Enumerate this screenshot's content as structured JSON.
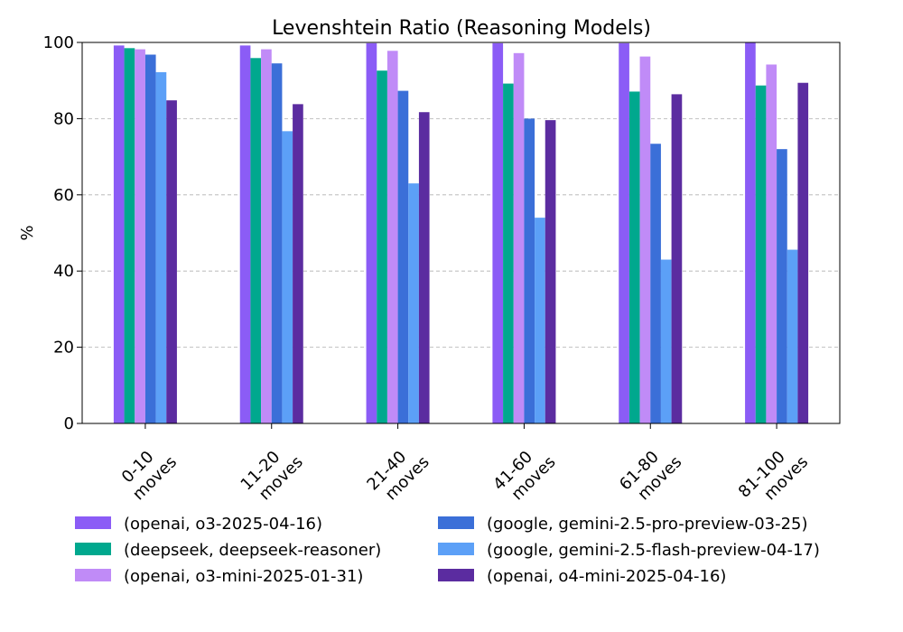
{
  "chart_data": {
    "type": "bar",
    "title": "Levenshtein Ratio (Reasoning Models)",
    "xlabel": "",
    "ylabel": "%",
    "ylim": [
      0,
      100
    ],
    "yticks": [
      "0",
      "20",
      "40",
      "60",
      "80",
      "100"
    ],
    "grid": true,
    "legend_position": "bottom",
    "categories": [
      "0-10\nmoves",
      "11-20\nmoves",
      "21-40\nmoves",
      "41-60\nmoves",
      "61-80\nmoves",
      "81-100\nmoves"
    ],
    "series": [
      {
        "name": "(openai, o3-2025-04-16)",
        "color": "#8b5cf6",
        "values": [
          99.2,
          99.2,
          99.8,
          99.8,
          99.8,
          100.0
        ]
      },
      {
        "name": "(deepseek, deepseek-reasoner)",
        "color": "#00a88e",
        "values": [
          98.5,
          95.9,
          92.6,
          89.2,
          87.1,
          88.7
        ]
      },
      {
        "name": "(openai, o3-mini-2025-01-31)",
        "color": "#c08bf7",
        "values": [
          98.2,
          98.2,
          97.8,
          97.2,
          96.3,
          94.2
        ]
      },
      {
        "name": "(google, gemini-2.5-pro-preview-03-25)",
        "color": "#3b6fd8",
        "values": [
          96.8,
          94.5,
          87.3,
          80.0,
          73.4,
          72.0
        ]
      },
      {
        "name": "(google, gemini-2.5-flash-preview-04-17)",
        "color": "#5ca0f7",
        "values": [
          92.2,
          76.7,
          63.0,
          54.0,
          43.0,
          45.6
        ]
      },
      {
        "name": "(openai, o4-mini-2025-04-16)",
        "color": "#5b2ca0",
        "values": [
          84.8,
          83.8,
          81.7,
          79.6,
          86.4,
          89.4
        ]
      }
    ]
  }
}
